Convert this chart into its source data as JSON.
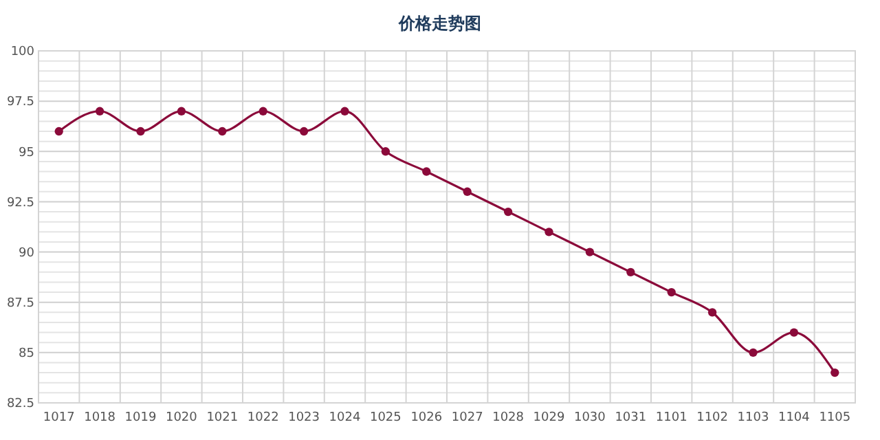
{
  "chart_data": {
    "type": "line",
    "title": "价格走势图",
    "categories": [
      "1017",
      "1018",
      "1019",
      "1020",
      "1021",
      "1022",
      "1023",
      "1024",
      "1025",
      "1026",
      "1027",
      "1028",
      "1029",
      "1030",
      "1031",
      "1101",
      "1102",
      "1103",
      "1104",
      "1105"
    ],
    "series": [
      {
        "color": "#8b0a3a",
        "values": [
          96,
          97,
          96,
          97,
          96,
          97,
          96,
          97,
          95,
          94,
          93,
          92,
          91,
          90,
          89,
          88,
          87,
          85,
          86,
          84
        ]
      }
    ],
    "ylim": [
      82.5,
      100
    ],
    "yticks": [
      82.5,
      {
        "value": 83,
        "label": null
      },
      {
        "value": 83.5,
        "label": null
      },
      {
        "value": 84,
        "label": null
      },
      {
        "value": 84.5,
        "label": null
      },
      85,
      {
        "value": 85.5,
        "label": null
      },
      {
        "value": 86,
        "label": null
      },
      {
        "value": 86.5,
        "label": null
      },
      {
        "value": 87,
        "label": null
      },
      87.5,
      {
        "value": 88,
        "label": null
      },
      {
        "value": 88.5,
        "label": null
      },
      {
        "value": 89,
        "label": null
      },
      {
        "value": 89.5,
        "label": null
      },
      90,
      {
        "value": 90.5,
        "label": null
      },
      {
        "value": 91,
        "label": null
      },
      {
        "value": 91.5,
        "label": null
      },
      {
        "value": 92,
        "label": null
      },
      92.5,
      {
        "value": 93,
        "label": null
      },
      {
        "value": 93.5,
        "label": null
      },
      {
        "value": 94,
        "label": null
      },
      {
        "value": 94.5,
        "label": null
      },
      95,
      {
        "value": 95.5,
        "label": null
      },
      {
        "value": 96,
        "label": null
      },
      {
        "value": 96.5,
        "label": null
      },
      {
        "value": 97,
        "label": null
      },
      97.5,
      {
        "value": 98,
        "label": null
      },
      {
        "value": 98.5,
        "label": null
      },
      {
        "value": 99,
        "label": null
      },
      {
        "value": 99.5,
        "label": null
      },
      100
    ],
    "grid": true,
    "marker": "circle",
    "line_style": "solid"
  }
}
